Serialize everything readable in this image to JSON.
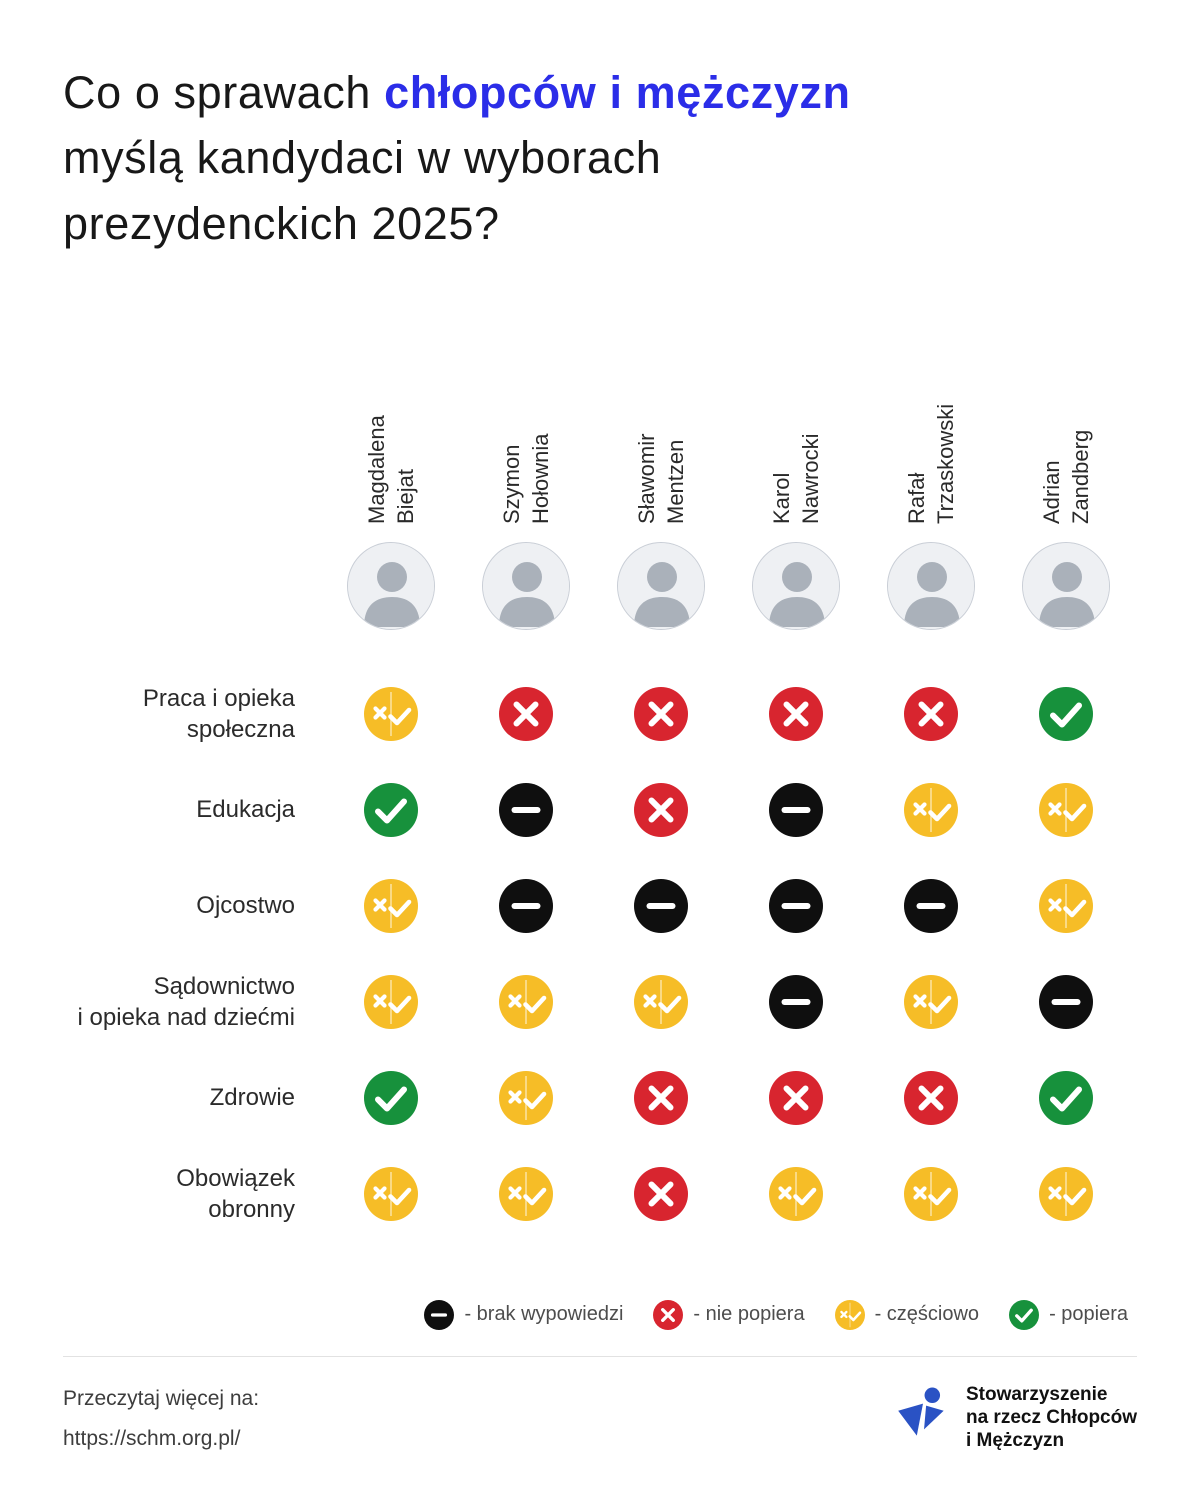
{
  "title": {
    "prefix": "Co o sprawach ",
    "highlight": "chłopców i mężczyzn",
    "line2": "myślą kandydaci w wyborach",
    "line3": "prezydenckich 2025?"
  },
  "candidates": [
    {
      "first": "Magdalena",
      "last": "Biejat"
    },
    {
      "first": "Szymon",
      "last": "Hołownia"
    },
    {
      "first": "Sławomir",
      "last": "Mentzen"
    },
    {
      "first": "Karol",
      "last": "Nawrocki"
    },
    {
      "first": "Rafał",
      "last": "Trzaskowski"
    },
    {
      "first": "Adrian",
      "last": "Zandberg"
    }
  ],
  "rows": [
    {
      "label": [
        "Praca i opieka",
        "społeczna"
      ],
      "values": [
        "partial",
        "no",
        "no",
        "no",
        "no",
        "yes"
      ]
    },
    {
      "label": [
        "Edukacja"
      ],
      "values": [
        "yes",
        "none",
        "no",
        "none",
        "partial",
        "partial"
      ]
    },
    {
      "label": [
        "Ojcostwo"
      ],
      "values": [
        "partial",
        "none",
        "none",
        "none",
        "none",
        "partial"
      ]
    },
    {
      "label": [
        "Sądownictwo",
        "i opieka nad dziećmi"
      ],
      "values": [
        "partial",
        "partial",
        "partial",
        "none",
        "partial",
        "none"
      ]
    },
    {
      "label": [
        "Zdrowie"
      ],
      "values": [
        "yes",
        "partial",
        "no",
        "no",
        "no",
        "yes"
      ]
    },
    {
      "label": [
        "Obowiązek",
        "obronny"
      ],
      "values": [
        "partial",
        "partial",
        "no",
        "partial",
        "partial",
        "partial"
      ]
    }
  ],
  "legend": [
    {
      "type": "none",
      "label": "- brak wypowiedzi"
    },
    {
      "type": "no",
      "label": "- nie popiera"
    },
    {
      "type": "partial",
      "label": "- częściowo"
    },
    {
      "type": "yes",
      "label": "- popiera"
    }
  ],
  "icon_names": {
    "partial": "partially-supports-icon",
    "no": "does-not-support-icon",
    "none": "no-statement-icon",
    "yes": "supports-icon"
  },
  "colors": {
    "accent_blue": "#2b2de8",
    "partial": "#f6bd27",
    "no": "#d8252f",
    "none": "#0f0f0f",
    "yes": "#17913c",
    "logo_blue": "#2a52c4"
  },
  "footer": {
    "more_line1": "Przeczytaj więcej na:",
    "more_line2": "https://schm.org.pl/",
    "org_line1": "Stowarzyszenie",
    "org_line2": "na rzecz Chłopców",
    "org_line3": "i Mężczyzn"
  },
  "chart_data": {
    "type": "table",
    "title": "Co o sprawach chłopców i mężczyzn myślą kandydaci w wyborach prezydenckich 2025?",
    "columns": [
      "Magdalena Biejat",
      "Szymon Hołownia",
      "Sławomir Mentzen",
      "Karol Nawrocki",
      "Rafał Trzaskowski",
      "Adrian Zandberg"
    ],
    "rows": [
      {
        "category": "Praca i opieka społeczna",
        "values": [
          "częściowo",
          "nie popiera",
          "nie popiera",
          "nie popiera",
          "nie popiera",
          "popiera"
        ]
      },
      {
        "category": "Edukacja",
        "values": [
          "popiera",
          "brak wypowiedzi",
          "nie popiera",
          "brak wypowiedzi",
          "częściowo",
          "częściowo"
        ]
      },
      {
        "category": "Ojcostwo",
        "values": [
          "częściowo",
          "brak wypowiedzi",
          "brak wypowiedzi",
          "brak wypowiedzi",
          "brak wypowiedzi",
          "częściowo"
        ]
      },
      {
        "category": "Sądownictwo i opieka nad dziećmi",
        "values": [
          "częściowo",
          "częściowo",
          "częściowo",
          "brak wypowiedzi",
          "częściowo",
          "brak wypowiedzi"
        ]
      },
      {
        "category": "Zdrowie",
        "values": [
          "popiera",
          "częściowo",
          "nie popiera",
          "nie popiera",
          "nie popiera",
          "popiera"
        ]
      },
      {
        "category": "Obowiązek obronny",
        "values": [
          "częściowo",
          "częściowo",
          "nie popiera",
          "częściowo",
          "częściowo",
          "częściowo"
        ]
      }
    ],
    "legend": {
      "brak wypowiedzi": "black",
      "nie popiera": "red",
      "częściowo": "yellow",
      "popiera": "green"
    },
    "legend_position": "bottom"
  }
}
